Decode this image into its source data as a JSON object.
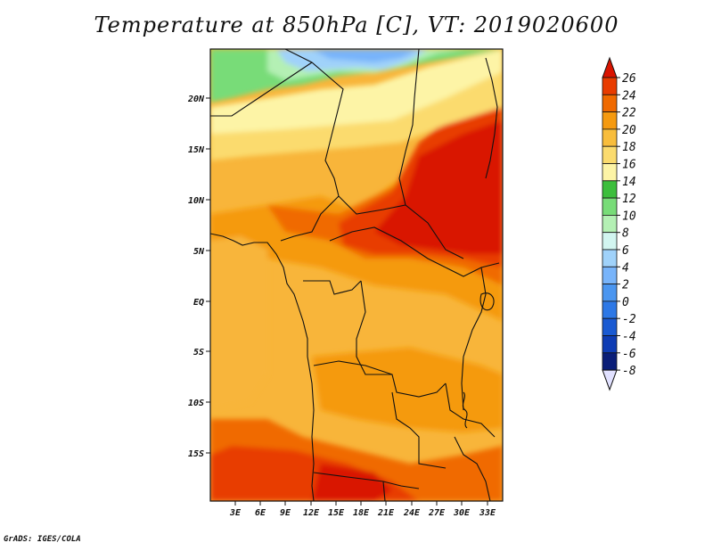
{
  "title": "Temperature at 850hPa [C], VT: 2019020600",
  "credit": "GrADS: IGES/COLA",
  "map": {
    "lat_ticks": [
      "20N",
      "15N",
      "10N",
      "5N",
      "EQ",
      "5S",
      "10S",
      "15S"
    ],
    "lon_ticks": [
      "3E",
      "6E",
      "9E",
      "12E",
      "15E",
      "18E",
      "21E",
      "24E",
      "27E",
      "30E",
      "33E"
    ]
  },
  "colorbar": {
    "labels": [
      "26",
      "24",
      "22",
      "20",
      "18",
      "16",
      "14",
      "12",
      "10",
      "8",
      "6",
      "4",
      "2",
      "0",
      "-2",
      "-4",
      "-6",
      "-8"
    ],
    "colors": [
      "#d91400",
      "#e83c00",
      "#f06a00",
      "#f59a10",
      "#f8bd3c",
      "#fbdb6e",
      "#fdf4a6",
      "#3cbe3c",
      "#78dc78",
      "#b4f0b4",
      "#d2f5f0",
      "#a0d2fa",
      "#78b4fa",
      "#4b96f0",
      "#2d78e6",
      "#1a5ad2",
      "#0e3cb4",
      "#0a1e78"
    ],
    "over_color": "#d91400",
    "under_color": "#e1e1ff"
  }
}
